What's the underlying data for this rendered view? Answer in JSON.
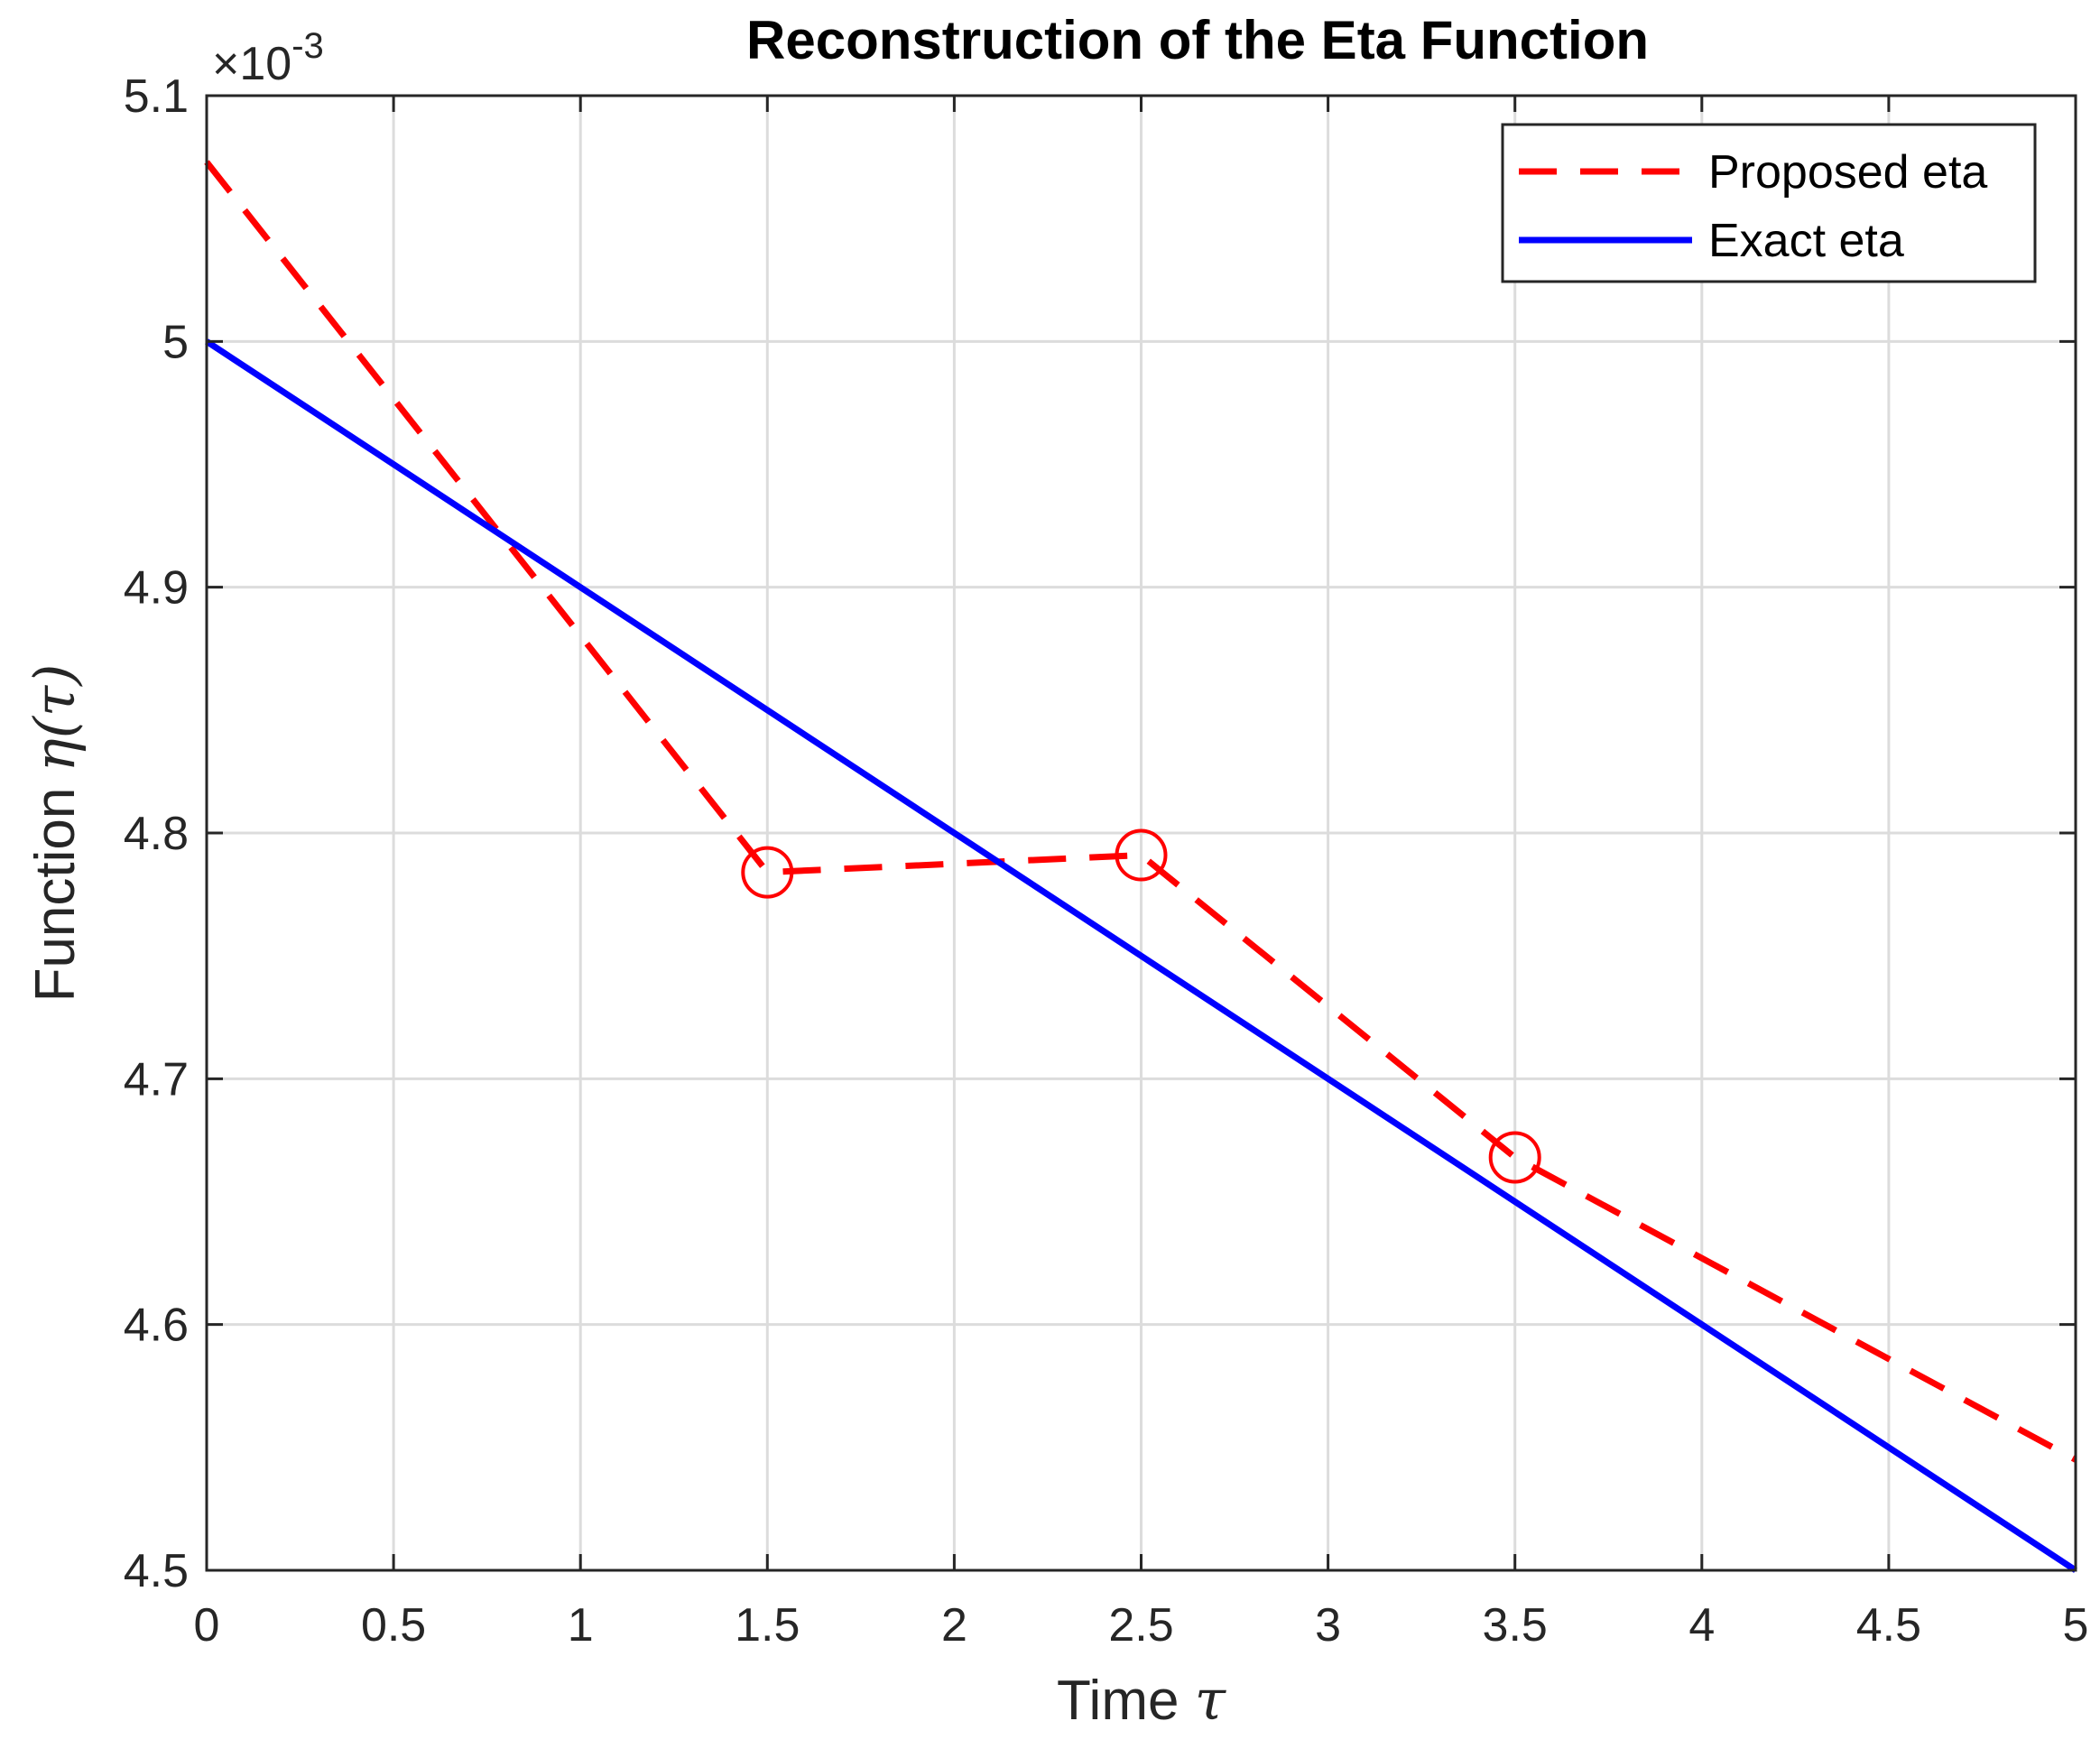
{
  "chart_data": {
    "type": "line",
    "title": "Reconstruction of the Eta Function",
    "xlabel": "Time",
    "xlabel_symbol": "τ",
    "ylabel": "Function",
    "ylabel_symbol": "η(τ)",
    "xlim": [
      0,
      5
    ],
    "ylim": [
      4.5,
      5.1
    ],
    "y_exponent_prefix": "×10",
    "y_exponent": "-3",
    "grid": true,
    "legend_position": "top-right",
    "x_ticks": [
      "0",
      "0.5",
      "1",
      "1.5",
      "2",
      "2.5",
      "3",
      "3.5",
      "4",
      "4.5",
      "5"
    ],
    "y_ticks": [
      "4.5",
      "4.6",
      "4.7",
      "4.8",
      "4.9",
      "5",
      "5.1"
    ],
    "series": [
      {
        "name": "Proposed eta",
        "color": "#ff0000",
        "style": "dashed",
        "x": [
          0,
          1.5,
          2.5,
          3.5,
          5
        ],
        "y": [
          5.073,
          4.784,
          4.791,
          4.668,
          4.545
        ]
      },
      {
        "name": "Exact eta",
        "color": "#0000ff",
        "style": "solid",
        "x": [
          0,
          5
        ],
        "y": [
          5.0,
          4.5
        ]
      }
    ],
    "markers": {
      "series": "Proposed eta",
      "shape": "circle",
      "color": "#ff0000",
      "x": [
        1.5,
        2.5,
        3.5
      ],
      "y": [
        4.784,
        4.791,
        4.668
      ]
    }
  }
}
